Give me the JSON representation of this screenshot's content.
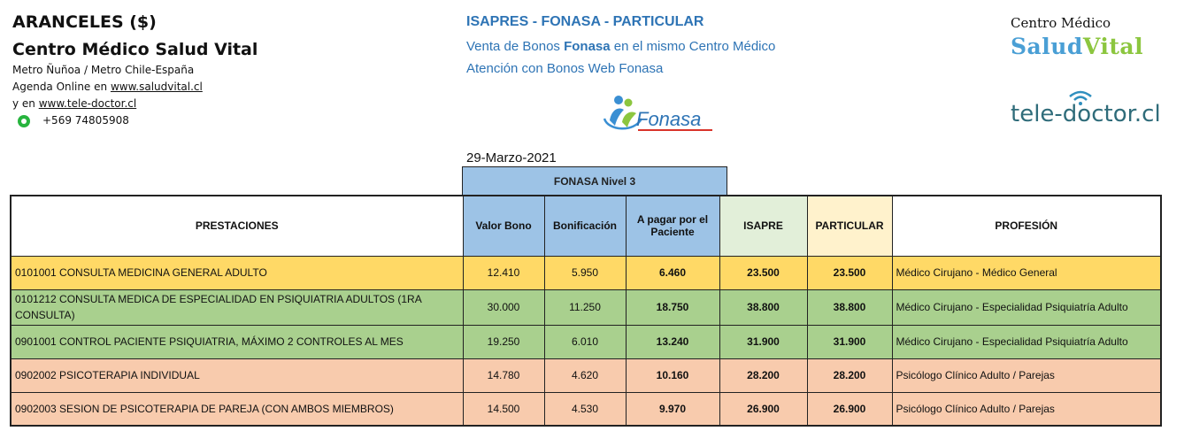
{
  "header_left": {
    "title": "ARANCELES ($)",
    "center_name": "Centro Médico Salud Vital",
    "metro": "Metro Ñuñoa / Metro Chile-España",
    "agenda_prefix": "Agenda Online en ",
    "agenda_link": "www.saludvital.cl",
    "tele_prefix": "y en  ",
    "tele_link": "www.tele-doctor.cl",
    "phone": "+569 74805908"
  },
  "header_middle": {
    "title": "ISAPRES - FONASA - PARTICULAR",
    "line1_a": "Venta de Bonos  ",
    "line1_b": "Fonasa",
    "line1_c": " en el mismo Centro Médico",
    "line2": "Atención con Bonos Web Fonasa",
    "fonasa_logo_text": "Fonasa",
    "date": "29-Marzo-2021"
  },
  "header_right": {
    "centro_medico": "Centro Médico",
    "logo_salud": "Salud",
    "logo_vital": "Vital",
    "tele_doctor": "tele-doctor.cl"
  },
  "table": {
    "group_header": "FONASA   Nivel 3",
    "columns": {
      "prestaciones": "PRESTACIONES",
      "valor_bono": "Valor Bono",
      "bonificacion": "Bonificación",
      "a_pagar": "A pagar por el Paciente",
      "isapre": "ISAPRE",
      "particular": "PARTICULAR",
      "profesion": "PROFESIÓN"
    },
    "rows": [
      {
        "prestacion": "0101001 CONSULTA MEDICINA GENERAL ADULTO",
        "valor_bono": "12.410",
        "bonificacion": "5.950",
        "a_pagar": "6.460",
        "isapre": "23.500",
        "particular": "23.500",
        "profesion": "Médico Cirujano - Médico General",
        "color": "yellow"
      },
      {
        "prestacion": "0101212 CONSULTA MEDICA DE ESPECIALIDAD EN PSIQUIATRIA ADULTOS (1RA CONSULTA)",
        "valor_bono": "30.000",
        "bonificacion": "11.250",
        "a_pagar": "18.750",
        "isapre": "38.800",
        "particular": "38.800",
        "profesion": "Médico Cirujano - Especialidad Psiquiatría Adulto",
        "color": "green"
      },
      {
        "prestacion": "0901001 CONTROL PACIENTE PSIQUIATRIA, MÁXIMO 2 CONTROLES AL MES",
        "valor_bono": "19.250",
        "bonificacion": "6.010",
        "a_pagar": "13.240",
        "isapre": "31.900",
        "particular": "31.900",
        "profesion": "Médico Cirujano - Especialidad Psiquiatría Adulto",
        "color": "green"
      },
      {
        "prestacion": "0902002 PSICOTERAPIA INDIVIDUAL",
        "valor_bono": "14.780",
        "bonificacion": "4.620",
        "a_pagar": "10.160",
        "isapre": "28.200",
        "particular": "28.200",
        "profesion": "Psicólogo Clínico Adulto / Parejas",
        "color": "orange"
      },
      {
        "prestacion": "0902003 SESION DE PSICOTERAPIA DE PAREJA (CON AMBOS MIEMBROS)",
        "valor_bono": "14.500",
        "bonificacion": "4.530",
        "a_pagar": "9.970",
        "isapre": "26.900",
        "particular": "26.900",
        "profesion": "Psicólogo Clínico Adulto / Parejas",
        "color": "orange"
      }
    ]
  },
  "colors": {
    "yellow_row": "#ffd966",
    "green_row": "#a9d08e",
    "orange_row": "#f8cbad",
    "fonasa_header": "#9dc3e6",
    "link_blue": "#2e74b5"
  }
}
